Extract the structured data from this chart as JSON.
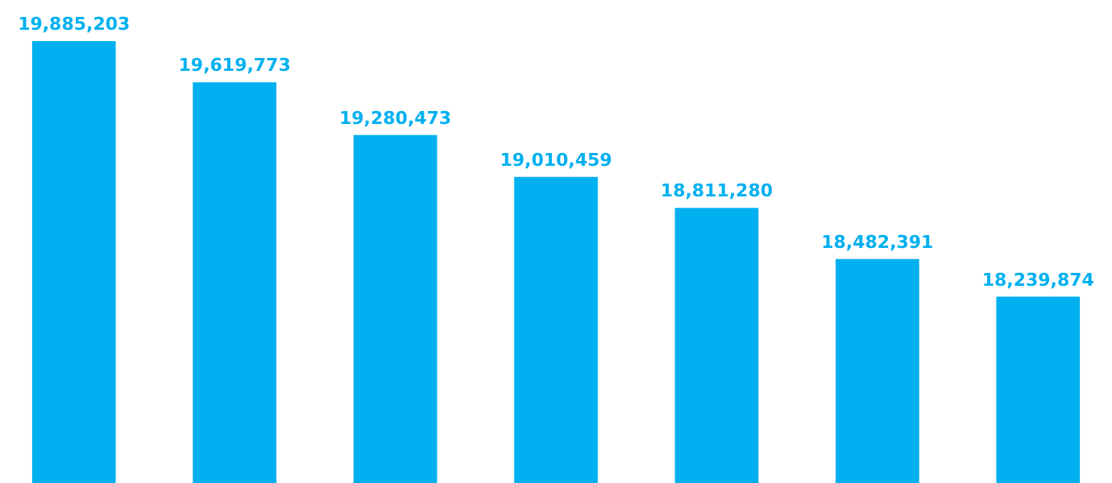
{
  "chart_data": {
    "type": "bar",
    "categories": [
      null,
      null,
      null,
      null,
      null,
      null,
      null
    ],
    "series": [
      {
        "color": "#00b0f0",
        "values": [
          19885203,
          19619773,
          19280473,
          19010459,
          18811280,
          18482391,
          18239874
        ],
        "value_labels": [
          "19,885,203",
          "19,619,773",
          "19,280,473",
          "19,010,459",
          "18,811,280",
          "18,482,391",
          "18,239,874"
        ]
      }
    ],
    "ylim": [
      17040000,
      20150000
    ]
  }
}
